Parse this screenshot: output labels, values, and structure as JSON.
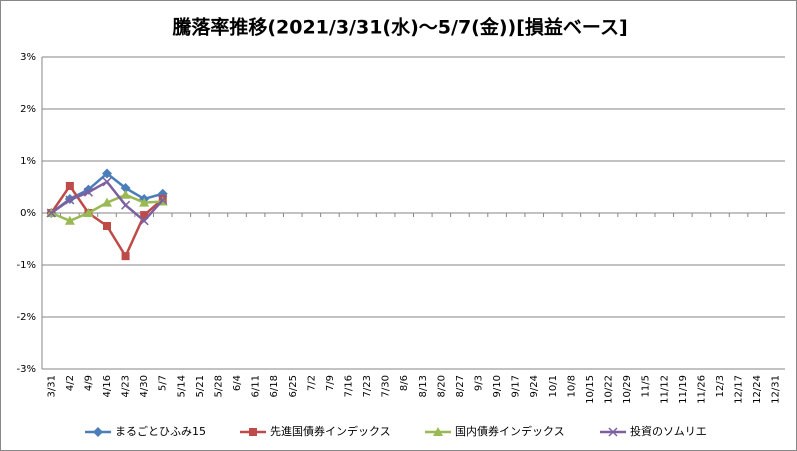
{
  "chart_data": {
    "type": "line",
    "title": "騰落率推移(2021/3/31(水)～5/7(金))[損益ベース]",
    "categories": [
      "3/31",
      "4/2",
      "4/9",
      "4/16",
      "4/23",
      "4/30",
      "5/7",
      "5/14",
      "5/21",
      "5/28",
      "6/4",
      "6/11",
      "6/18",
      "6/25",
      "7/2",
      "7/9",
      "7/16",
      "7/23",
      "7/30",
      "8/6",
      "8/13",
      "8/20",
      "8/27",
      "9/3",
      "9/10",
      "9/17",
      "9/24",
      "10/1",
      "10/8",
      "10/15",
      "10/22",
      "10/29",
      "11/5",
      "11/12",
      "11/19",
      "11/26",
      "12/3",
      "12/17",
      "12/24",
      "12/31"
    ],
    "series": [
      {
        "name": "まるごとひふみ15",
        "color": "#4a7ebb",
        "marker": "diamond",
        "values": [
          0,
          0.27,
          0.45,
          0.76,
          0.48,
          0.27,
          0.37,
          null,
          null,
          null,
          null,
          null,
          null,
          null,
          null,
          null,
          null,
          null,
          null,
          null,
          null,
          null,
          null,
          null,
          null,
          null,
          null,
          null,
          null,
          null,
          null,
          null,
          null,
          null,
          null,
          null,
          null,
          null,
          null,
          null
        ]
      },
      {
        "name": "先進国債券インデックス",
        "color": "#be4b48",
        "marker": "square",
        "values": [
          0,
          0.52,
          0.0,
          -0.25,
          -0.83,
          -0.04,
          0.27,
          null,
          null,
          null,
          null,
          null,
          null,
          null,
          null,
          null,
          null,
          null,
          null,
          null,
          null,
          null,
          null,
          null,
          null,
          null,
          null,
          null,
          null,
          null,
          null,
          null,
          null,
          null,
          null,
          null,
          null,
          null,
          null,
          null
        ]
      },
      {
        "name": "国内債券インデックス",
        "color": "#98b954",
        "marker": "triangle",
        "values": [
          0,
          -0.15,
          0.0,
          0.2,
          0.35,
          0.2,
          0.22,
          null,
          null,
          null,
          null,
          null,
          null,
          null,
          null,
          null,
          null,
          null,
          null,
          null,
          null,
          null,
          null,
          null,
          null,
          null,
          null,
          null,
          null,
          null,
          null,
          null,
          null,
          null,
          null,
          null,
          null,
          null,
          null,
          null
        ]
      },
      {
        "name": "投資のソムリエ",
        "color": "#7d60a0",
        "marker": "x",
        "values": [
          0,
          0.25,
          0.4,
          0.6,
          0.15,
          -0.15,
          0.25,
          null,
          null,
          null,
          null,
          null,
          null,
          null,
          null,
          null,
          null,
          null,
          null,
          null,
          null,
          null,
          null,
          null,
          null,
          null,
          null,
          null,
          null,
          null,
          null,
          null,
          null,
          null,
          null,
          null,
          null,
          null,
          null,
          null
        ]
      }
    ],
    "ylim": [
      -3,
      3
    ],
    "yticks": [
      {
        "value": -3,
        "label": "-3%"
      },
      {
        "value": -2,
        "label": "-2%"
      },
      {
        "value": -1,
        "label": "-1%"
      },
      {
        "value": 0,
        "label": "0%"
      },
      {
        "value": 1,
        "label": "1%"
      },
      {
        "value": 2,
        "label": "2%"
      },
      {
        "value": 3,
        "label": "3%"
      }
    ],
    "grid": true,
    "legend": "bottom"
  }
}
